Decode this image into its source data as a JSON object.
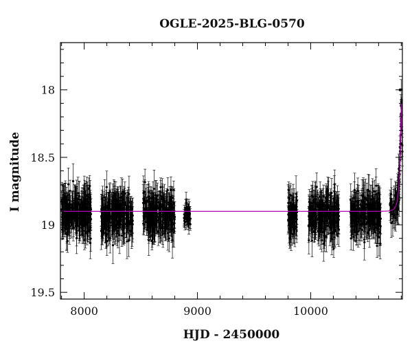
{
  "chart_data": {
    "type": "scatter",
    "title": "OGLE-2025-BLG-0570",
    "xlabel": "HJD - 2450000",
    "ylabel": "I magnitude",
    "xlim": [
      7790,
      10810
    ],
    "ylim": [
      19.55,
      17.65
    ],
    "y_inverted": true,
    "x_ticks": [
      {
        "value": 8000,
        "label": "8000"
      },
      {
        "value": 9000,
        "label": "9000"
      },
      {
        "value": 10000,
        "label": "10000"
      }
    ],
    "y_ticks": [
      {
        "value": 18.0,
        "label": "18"
      },
      {
        "value": 18.5,
        "label": "18.5"
      },
      {
        "value": 19.0,
        "label": "19"
      },
      {
        "value": 19.5,
        "label": "19.5"
      }
    ],
    "x_minor_step": 200,
    "y_minor_step": 0.1,
    "grid": false,
    "legend": "none",
    "colors": {
      "points": "#000000",
      "model": "#b400b4",
      "axes": "#000000"
    },
    "series": [
      {
        "kind": "observations",
        "seasons": [
          {
            "x_start": 7800,
            "x_end": 8060,
            "mean_mag": 18.92,
            "scatter": 0.14,
            "err_bar": 0.1,
            "n_points": 260
          },
          {
            "x_start": 8150,
            "x_end": 8430,
            "mean_mag": 18.92,
            "scatter": 0.14,
            "err_bar": 0.1,
            "n_points": 260
          },
          {
            "x_start": 8520,
            "x_end": 8800,
            "mean_mag": 18.92,
            "scatter": 0.14,
            "err_bar": 0.1,
            "n_points": 260
          },
          {
            "x_start": 8880,
            "x_end": 8940,
            "mean_mag": 18.92,
            "scatter": 0.07,
            "err_bar": 0.06,
            "n_points": 40
          },
          {
            "x_start": 9800,
            "x_end": 9880,
            "mean_mag": 18.92,
            "scatter": 0.14,
            "err_bar": 0.1,
            "n_points": 80
          },
          {
            "x_start": 9980,
            "x_end": 10250,
            "mean_mag": 18.92,
            "scatter": 0.14,
            "err_bar": 0.1,
            "n_points": 230
          },
          {
            "x_start": 10350,
            "x_end": 10620,
            "mean_mag": 18.92,
            "scatter": 0.14,
            "err_bar": 0.1,
            "n_points": 230
          },
          {
            "x_start": 10700,
            "x_end": 10810,
            "mean_mag": 18.92,
            "scatter": 0.12,
            "err_bar": 0.09,
            "n_points": 70
          }
        ],
        "peak": {
          "x": 10790,
          "mag": 18.0
        }
      },
      {
        "kind": "model",
        "baseline_mag": 18.9,
        "peak_x": 10800,
        "peak_mag": 18.1,
        "t_e": 30,
        "u0": 0.12
      }
    ]
  }
}
